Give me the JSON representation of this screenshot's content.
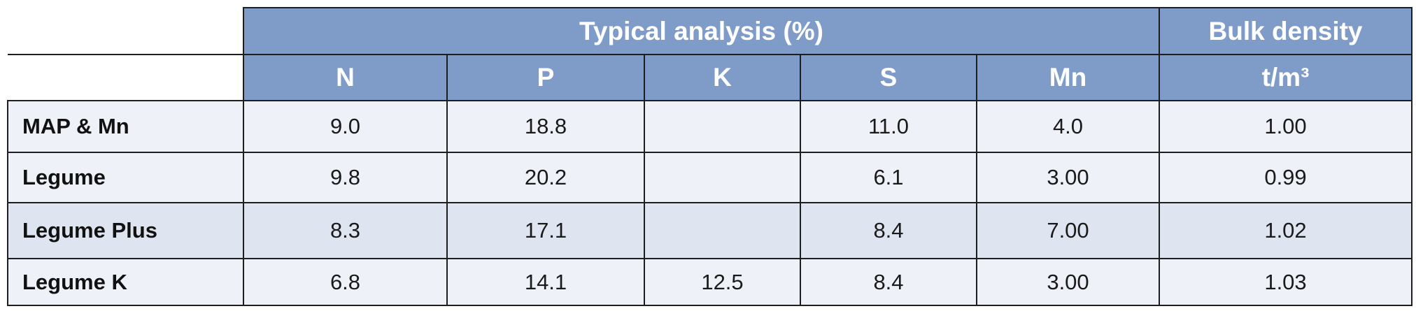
{
  "table": {
    "group_title": "Typical analysis (%)",
    "bulk_title": "Bulk density",
    "columns": [
      "N",
      "P",
      "K",
      "S",
      "Mn"
    ],
    "bulk_unit": "t/m³",
    "rows": [
      {
        "label": "MAP & Mn",
        "values": [
          "9.0",
          "18.8",
          null,
          "11.0",
          "4.0"
        ],
        "bulk": "1.00"
      },
      {
        "label": "Legume",
        "values": [
          "9.8",
          "20.2",
          null,
          "6.1",
          "3.00"
        ],
        "bulk": "0.99"
      },
      {
        "label": "Legume Plus",
        "values": [
          "8.3",
          "17.1",
          null,
          "8.4",
          "7.00"
        ],
        "bulk": "1.02"
      },
      {
        "label": "Legume K",
        "values": [
          "6.8",
          "14.1",
          "12.5",
          "8.4",
          "3.00"
        ],
        "bulk": "1.03"
      }
    ]
  }
}
